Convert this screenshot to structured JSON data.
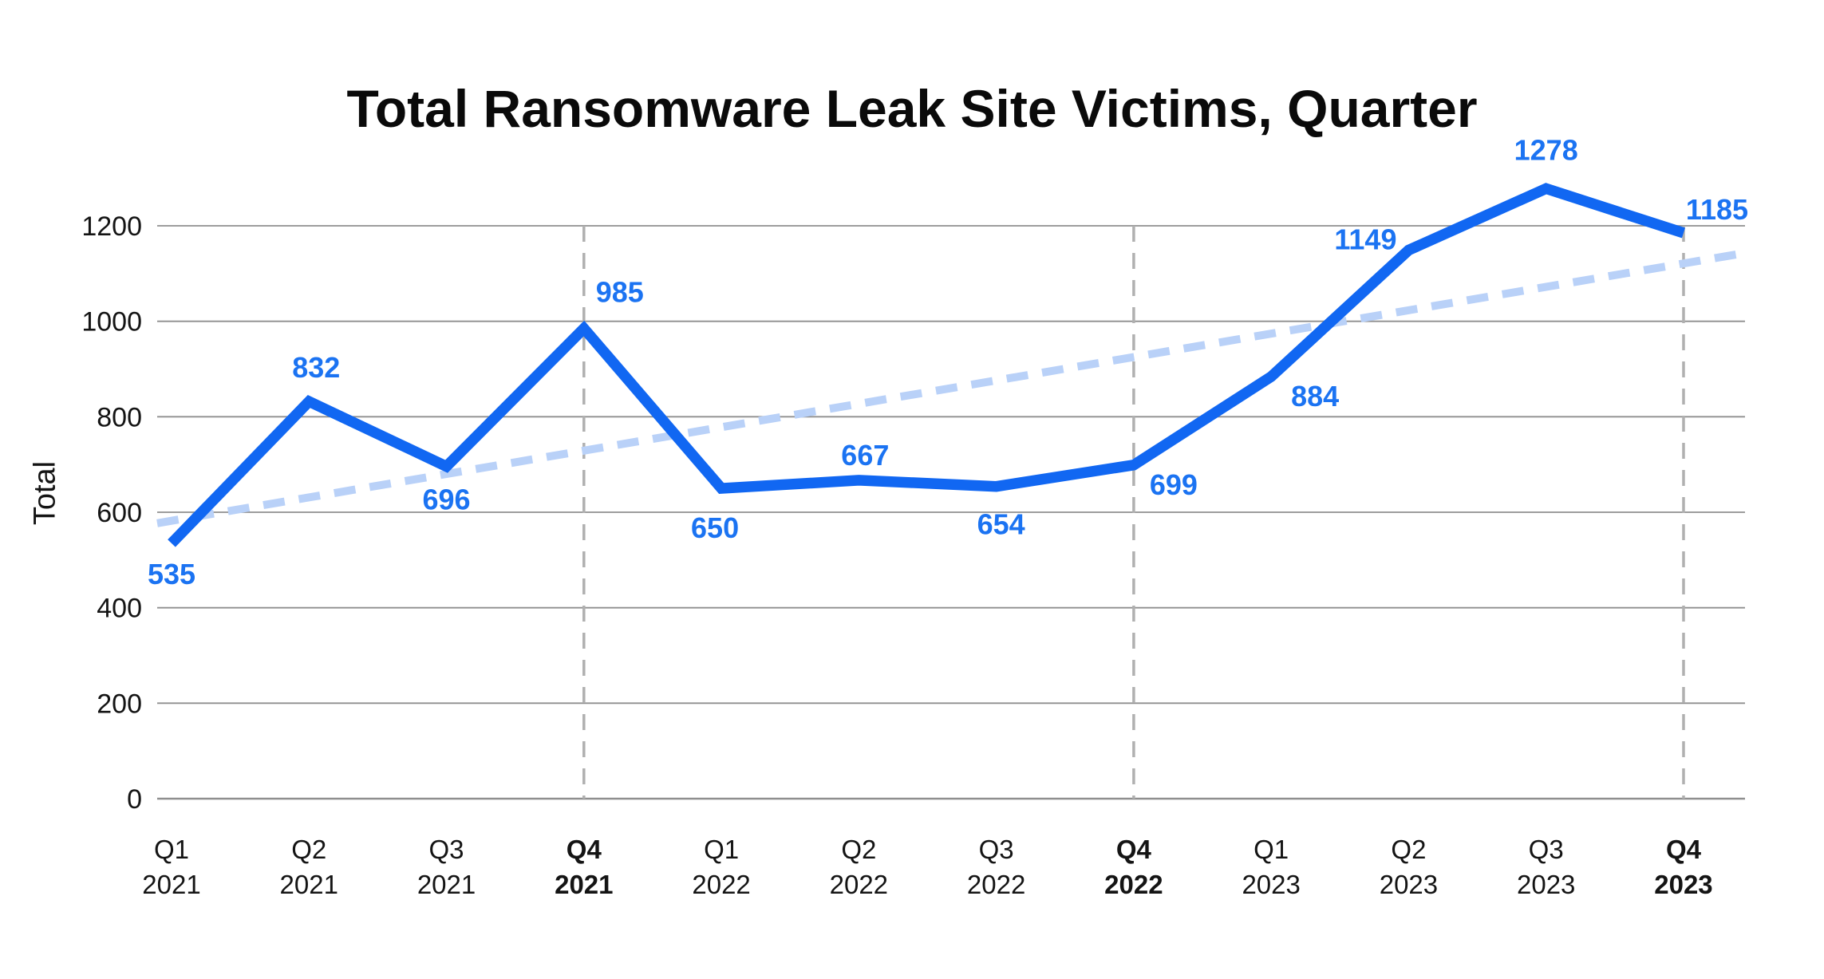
{
  "title": "Total Ransomware Leak Site Victims, Quarter",
  "chart_data": {
    "type": "line",
    "title": "Total Ransomware Leak Site Victims, Quarter",
    "xlabel": "",
    "ylabel": "Total",
    "categories": [
      "Q1 2021",
      "Q2 2021",
      "Q3 2021",
      "Q4 2021",
      "Q1 2022",
      "Q2 2022",
      "Q3 2022",
      "Q4 2022",
      "Q1 2023",
      "Q2 2023",
      "Q3 2023",
      "Q4 2023"
    ],
    "values": [
      535,
      832,
      696,
      985,
      650,
      667,
      654,
      699,
      884,
      1149,
      1278,
      1185
    ],
    "data_labels": [
      "535",
      "832",
      "696",
      "985",
      "650",
      "667",
      "654",
      "699",
      "884",
      "1149",
      "1278",
      "1185"
    ],
    "ylim": [
      0,
      1200
    ],
    "yticks": [
      0,
      200,
      400,
      600,
      800,
      1000,
      1200
    ],
    "grid": "horizontal",
    "legend": "none",
    "emphasized_categories": [
      "Q4 2021",
      "Q4 2022",
      "Q4 2023"
    ],
    "vertical_guides": [
      "Q4 2021",
      "Q4 2022",
      "Q4 2023"
    ],
    "trendline": {
      "style": "dashed",
      "start_value": 577,
      "end_value": 1143
    },
    "colors": {
      "series_line": "#1167F2",
      "data_label_text": "#1B73F2",
      "trend_line": "#B9D1F8",
      "gridline": "#8F8F8F",
      "guide_line": "#B0B0B0",
      "axis_text": "#141414",
      "title_text": "#0A0A0A",
      "background": "#FFFFFF"
    }
  }
}
